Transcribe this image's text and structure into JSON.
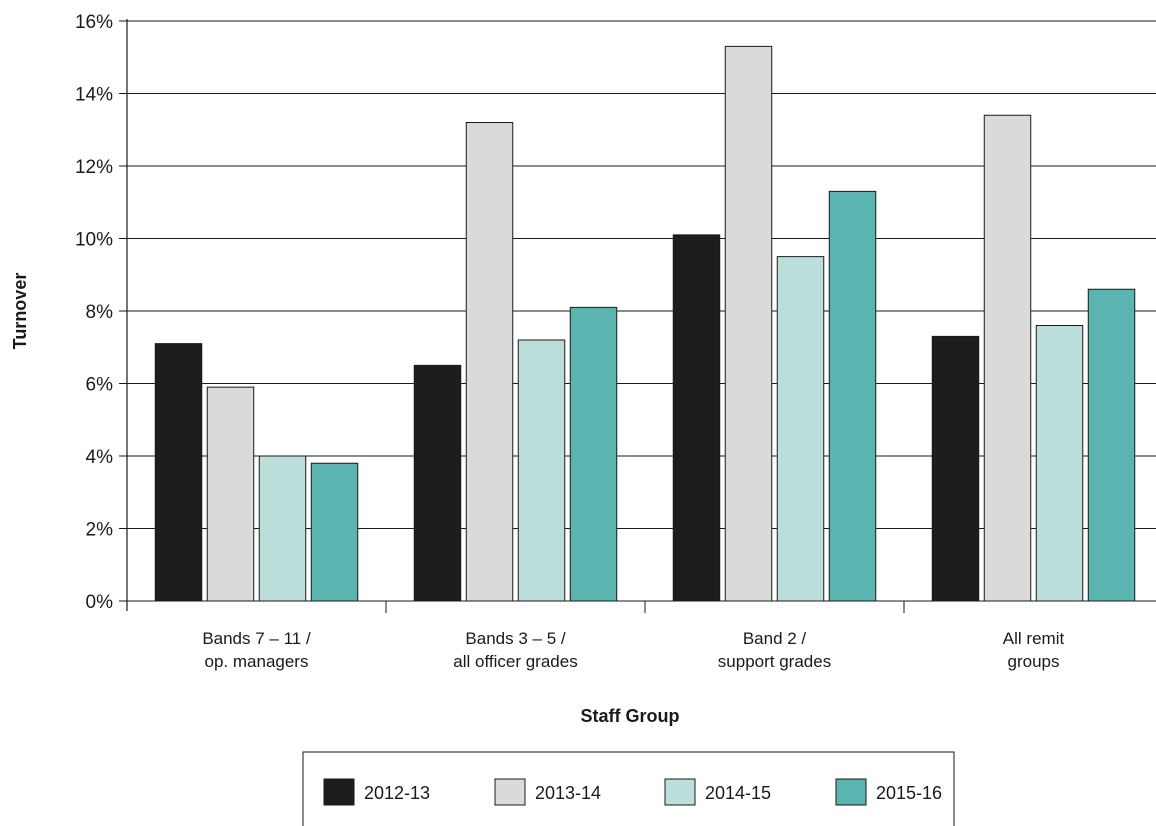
{
  "chart_data": {
    "type": "bar",
    "categories": [
      [
        "Bands 7 – 11 /",
        "op. managers"
      ],
      [
        "Bands 3 – 5 /",
        "all officer grades"
      ],
      [
        "Band 2 /",
        "support grades"
      ],
      [
        "All remit",
        "groups"
      ]
    ],
    "series": [
      {
        "name": "2012-13",
        "color": "#1d1d1b",
        "values": [
          7.1,
          6.5,
          10.1,
          7.3
        ]
      },
      {
        "name": "2013-14",
        "color": "#dadada",
        "values": [
          5.9,
          13.2,
          15.3,
          13.4
        ]
      },
      {
        "name": "2014-15",
        "color": "#bcdedb",
        "values": [
          4.0,
          7.2,
          9.5,
          7.6
        ]
      },
      {
        "name": "2015-16",
        "color": "#5ab4b0",
        "values": [
          3.8,
          8.1,
          11.3,
          8.6
        ]
      }
    ],
    "xlabel": "Staff Group",
    "ylabel": "Turnover",
    "ylim": [
      0,
      16
    ],
    "yticks": [
      0,
      2,
      4,
      6,
      8,
      10,
      12,
      14,
      16
    ],
    "ytick_suffix": "%",
    "grid": "horizontal",
    "legend_position": "bottom"
  }
}
